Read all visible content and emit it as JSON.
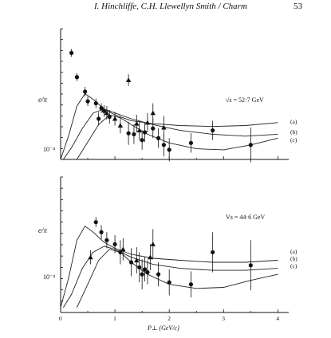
{
  "header": {
    "title": "I. Hinchliffe, C.H. Llewellyn Smith / Charm",
    "page_number": "53"
  },
  "chart_data": [
    {
      "type": "scatter",
      "panel": "top",
      "annotation": "√s = 52·7 GeV",
      "ylabel": "e/π",
      "ytick_label": "10⁻⁴",
      "log_y": true,
      "xlim": [
        0,
        4.2
      ],
      "ylog_range": [
        -4.1,
        -2.75
      ],
      "curve_labels": [
        "(a)",
        "(b)",
        "(c)"
      ],
      "circles": [
        {
          "x": 0.2,
          "y": -3.0,
          "err": 0.04
        },
        {
          "x": 0.3,
          "y": -3.25,
          "err": 0.04
        },
        {
          "x": 0.45,
          "y": -3.4,
          "err": 0.05
        },
        {
          "x": 0.5,
          "y": -3.5,
          "err": 0.05
        },
        {
          "x": 0.65,
          "y": -3.52,
          "err": 0.05
        },
        {
          "x": 0.7,
          "y": -3.68,
          "err": 0.07
        },
        {
          "x": 0.75,
          "y": -3.57,
          "err": 0.05
        },
        {
          "x": 0.8,
          "y": -3.6,
          "err": 0.06
        },
        {
          "x": 0.9,
          "y": -3.66,
          "err": 0.07
        },
        {
          "x": 1.25,
          "y": -3.83,
          "err": 0.12
        },
        {
          "x": 1.35,
          "y": -3.84,
          "err": 0.1
        },
        {
          "x": 1.5,
          "y": -3.9,
          "err": 0.1
        },
        {
          "x": 1.55,
          "y": -3.82,
          "err": 0.1
        },
        {
          "x": 1.7,
          "y": -3.78,
          "err": 0.1
        },
        {
          "x": 1.8,
          "y": -3.88,
          "err": 0.1
        },
        {
          "x": 1.9,
          "y": -3.95,
          "err": 0.12
        },
        {
          "x": 2.0,
          "y": -4.0,
          "err": 0.12
        },
        {
          "x": 2.4,
          "y": -3.93,
          "err": 0.1
        },
        {
          "x": 2.8,
          "y": -3.8,
          "err": 0.1
        },
        {
          "x": 3.5,
          "y": -3.95,
          "err": 0.18
        }
      ],
      "triangles": [
        {
          "x": 0.85,
          "y": -3.62,
          "err": 0.07
        },
        {
          "x": 1.0,
          "y": -3.68,
          "err": 0.07
        },
        {
          "x": 1.1,
          "y": -3.75,
          "err": 0.08
        },
        {
          "x": 1.25,
          "y": -3.28,
          "err": 0.06
        },
        {
          "x": 1.4,
          "y": -3.73,
          "err": 0.09
        },
        {
          "x": 1.45,
          "y": -3.8,
          "err": 0.1
        },
        {
          "x": 1.6,
          "y": -3.72,
          "err": 0.1
        },
        {
          "x": 1.7,
          "y": -3.62,
          "err": 0.1
        },
        {
          "x": 1.9,
          "y": -3.77,
          "err": 0.12
        }
      ],
      "curves": [
        {
          "name": "(a)",
          "x": [
            0,
            0.15,
            0.3,
            0.45,
            0.6,
            0.8,
            1.0,
            1.3,
            1.7,
            2.2,
            2.8,
            3.4,
            4.0
          ],
          "y": [
            -4.1,
            -3.85,
            -3.55,
            -3.42,
            -3.48,
            -3.58,
            -3.64,
            -3.7,
            -3.73,
            -3.75,
            -3.76,
            -3.75,
            -3.72
          ]
        },
        {
          "name": "(b)",
          "x": [
            0.05,
            0.2,
            0.4,
            0.6,
            0.8,
            1.0,
            1.3,
            1.7,
            2.2,
            2.8,
            3.4,
            4.0
          ],
          "y": [
            -4.1,
            -3.98,
            -3.78,
            -3.62,
            -3.58,
            -3.62,
            -3.68,
            -3.74,
            -3.8,
            -3.84,
            -3.86,
            -3.84
          ]
        },
        {
          "name": "(c)",
          "x": [
            0.3,
            0.5,
            0.7,
            0.9,
            1.1,
            1.3,
            1.6,
            2.0,
            2.5,
            3.0,
            3.5,
            4.0
          ],
          "y": [
            -4.1,
            -3.92,
            -3.74,
            -3.64,
            -3.67,
            -3.74,
            -3.84,
            -3.93,
            -3.99,
            -4.0,
            -3.95,
            -3.88
          ]
        }
      ]
    },
    {
      "type": "scatter",
      "panel": "bottom",
      "annotation": "Vs = 44·6 GeV",
      "ylabel": "e/π",
      "ytick_label": "10⁻⁴",
      "log_y": true,
      "xlim": [
        0,
        4.2
      ],
      "xlabel": "P⊥ (GeV/c)",
      "xtick_labels": [
        "0",
        "1",
        "2",
        "3",
        "4"
      ],
      "ylog_range": [
        -4.1,
        -2.75
      ],
      "curve_labels": [
        "(a)",
        "(b)",
        "(c)"
      ],
      "circles": [
        {
          "x": 0.65,
          "y": -3.2,
          "err": 0.05
        },
        {
          "x": 0.75,
          "y": -3.3,
          "err": 0.07
        },
        {
          "x": 0.85,
          "y": -3.38,
          "err": 0.08
        },
        {
          "x": 1.0,
          "y": -3.42,
          "err": 0.09
        },
        {
          "x": 1.1,
          "y": -3.5,
          "err": 0.12
        },
        {
          "x": 1.3,
          "y": -3.6,
          "err": 0.14
        },
        {
          "x": 1.45,
          "y": -3.65,
          "err": 0.15
        },
        {
          "x": 1.5,
          "y": -3.72,
          "err": 0.15
        },
        {
          "x": 1.55,
          "y": -3.67,
          "err": 0.12
        },
        {
          "x": 1.6,
          "y": -3.7,
          "err": 0.12
        },
        {
          "x": 1.8,
          "y": -3.72,
          "err": 0.12
        },
        {
          "x": 2.0,
          "y": -3.8,
          "err": 0.13
        },
        {
          "x": 2.4,
          "y": -3.82,
          "err": 0.13
        },
        {
          "x": 2.8,
          "y": -3.5,
          "err": 0.2
        },
        {
          "x": 3.5,
          "y": -3.63,
          "err": 0.25
        }
      ],
      "triangles": [
        {
          "x": 0.55,
          "y": -3.55,
          "err": 0.07
        },
        {
          "x": 1.15,
          "y": -3.47,
          "err": 0.11
        },
        {
          "x": 1.4,
          "y": -3.58,
          "err": 0.13
        },
        {
          "x": 1.65,
          "y": -3.55,
          "err": 0.13
        },
        {
          "x": 1.7,
          "y": -3.42,
          "err": 0.15
        }
      ],
      "curves": [
        {
          "name": "(a)",
          "x": [
            0,
            0.15,
            0.3,
            0.45,
            0.6,
            0.8,
            1.0,
            1.3,
            1.7,
            2.2,
            2.8,
            3.4,
            4.0
          ],
          "y": [
            -4.05,
            -3.75,
            -3.38,
            -3.24,
            -3.3,
            -3.4,
            -3.46,
            -3.52,
            -3.56,
            -3.58,
            -3.6,
            -3.6,
            -3.58
          ]
        },
        {
          "name": "(b)",
          "x": [
            0.05,
            0.2,
            0.4,
            0.6,
            0.8,
            1.0,
            1.3,
            1.7,
            2.2,
            2.8,
            3.4,
            4.0
          ],
          "y": [
            -4.05,
            -3.92,
            -3.66,
            -3.5,
            -3.44,
            -3.47,
            -3.55,
            -3.62,
            -3.66,
            -3.68,
            -3.68,
            -3.66
          ]
        },
        {
          "name": "(c)",
          "x": [
            0.3,
            0.5,
            0.7,
            0.9,
            1.1,
            1.3,
            1.6,
            2.0,
            2.5,
            3.0,
            3.5,
            4.0
          ],
          "y": [
            -4.05,
            -3.82,
            -3.58,
            -3.47,
            -3.5,
            -3.6,
            -3.72,
            -3.82,
            -3.86,
            -3.85,
            -3.78,
            -3.72
          ]
        }
      ]
    }
  ]
}
